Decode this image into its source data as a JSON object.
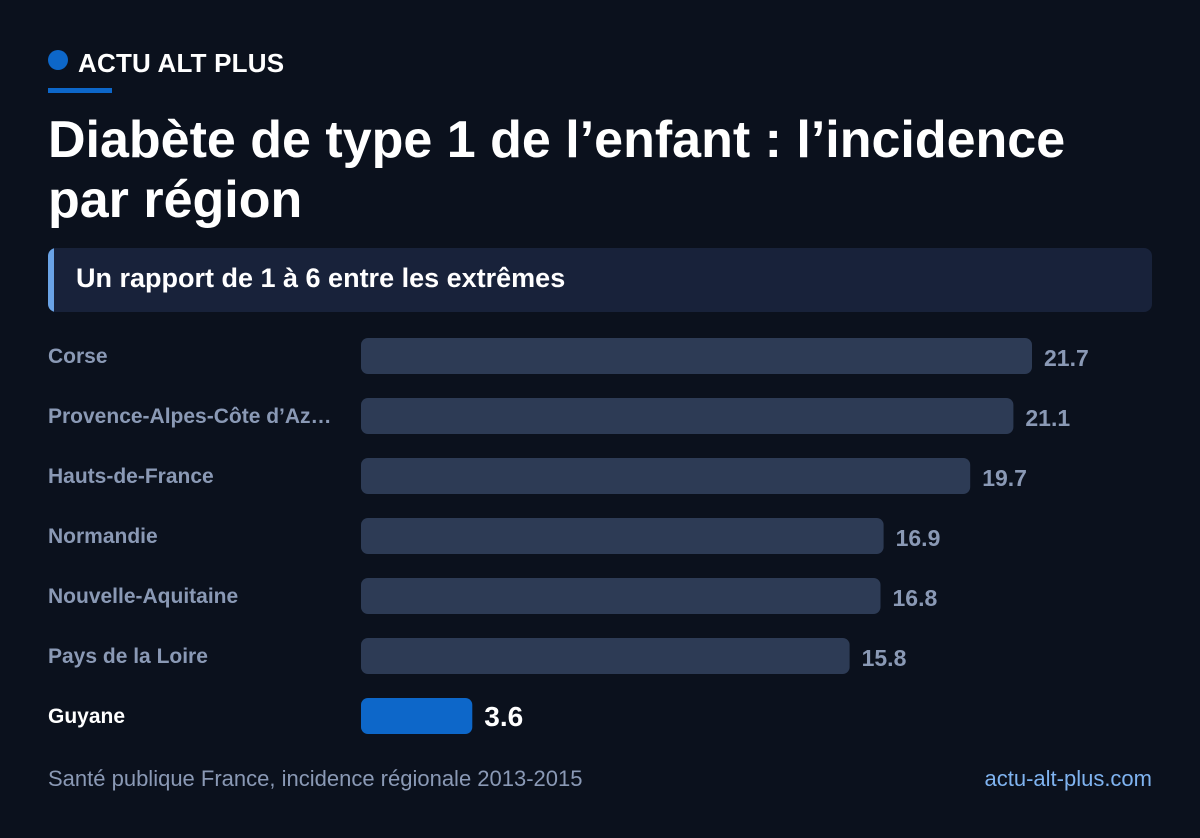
{
  "brand": {
    "name": "ACTU ALT PLUS",
    "accent_color": "#0d67c9"
  },
  "title": "Diabète de type 1 de l’enfant : l’incidence par région",
  "subtitle": "Un rapport de 1 à 6 entre les extrêmes",
  "chart_data": {
    "type": "bar",
    "orientation": "horizontal",
    "categories": [
      "Corse",
      "Provence-Alpes-Côte d’Az…",
      "Hauts-de-France",
      "Normandie",
      "Nouvelle-Aquitaine",
      "Pays de la Loire",
      "Guyane"
    ],
    "values": [
      21.7,
      21.1,
      19.7,
      16.9,
      16.8,
      15.8,
      3.6
    ],
    "value_labels": [
      "21.7",
      "21.1",
      "19.7",
      "16.9",
      "16.8",
      "15.8",
      "3.6"
    ],
    "highlight_index": 6,
    "xlim": [
      0,
      21.7
    ],
    "grid": false,
    "legend": "none",
    "colors": {
      "bar": "#2d3b55",
      "highlight_bar": "#0d67c9",
      "label": "#8a99b5",
      "highlight_label": "#ffffff"
    }
  },
  "footer": {
    "source": "Santé publique France, incidence régionale 2013-2015",
    "site": "actu-alt-plus.com"
  }
}
